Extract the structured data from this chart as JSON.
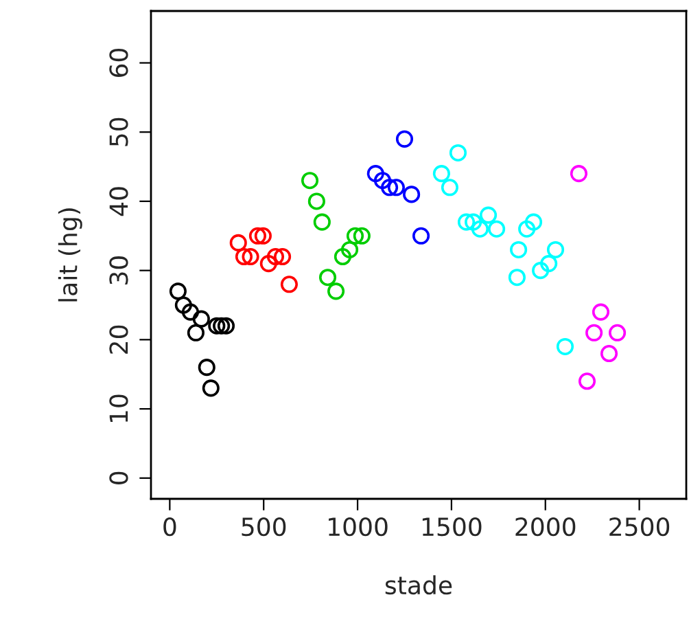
{
  "chart_data": {
    "type": "scatter",
    "xlabel": "stade",
    "ylabel": "lait (hg)",
    "xlim": [
      -100,
      2750
    ],
    "ylim": [
      -3,
      67.5
    ],
    "xticks": [
      0,
      500,
      1000,
      1500,
      2000,
      2500
    ],
    "yticks": [
      0,
      10,
      20,
      30,
      40,
      50,
      60
    ],
    "grid": false,
    "legend": false,
    "marker": "circle",
    "series": [
      {
        "color": "#000000",
        "x": [
          44,
          73,
          110,
          139,
          168,
          197,
          219,
          250,
          275,
          300
        ],
        "values": [
          27,
          25,
          24,
          21,
          23,
          16,
          13,
          22,
          22,
          22
        ]
      },
      {
        "color": "#ff0000",
        "x": [
          365,
          395,
          430,
          468,
          497,
          526,
          563,
          600,
          636
        ],
        "values": [
          34,
          32,
          32,
          35,
          35,
          31,
          32,
          32,
          28
        ]
      },
      {
        "color": "#00cd00",
        "x": [
          746,
          782,
          811,
          841,
          885,
          921,
          958,
          987,
          1023
        ],
        "values": [
          43,
          40,
          37,
          29,
          27,
          32,
          33,
          35,
          35
        ]
      },
      {
        "color": "#0000ff",
        "x": [
          1096,
          1133,
          1170,
          1206,
          1287,
          1250,
          1338
        ],
        "values": [
          44,
          43,
          42,
          42,
          41,
          49,
          35
        ]
      },
      {
        "color": "#00ffff",
        "x": [
          1447,
          1491,
          1535,
          1579,
          1616,
          1652,
          1696,
          1740,
          1849,
          1857,
          1901,
          1937,
          1974,
          2018,
          2054,
          2105
        ],
        "values": [
          44,
          42,
          47,
          37,
          37,
          36,
          38,
          36,
          29,
          33,
          36,
          37,
          30,
          31,
          33,
          19
        ]
      },
      {
        "color": "#ff00ff",
        "x": [
          2178,
          2222,
          2259,
          2295,
          2339,
          2383
        ],
        "values": [
          44,
          14,
          21,
          24,
          18,
          21
        ]
      }
    ]
  }
}
